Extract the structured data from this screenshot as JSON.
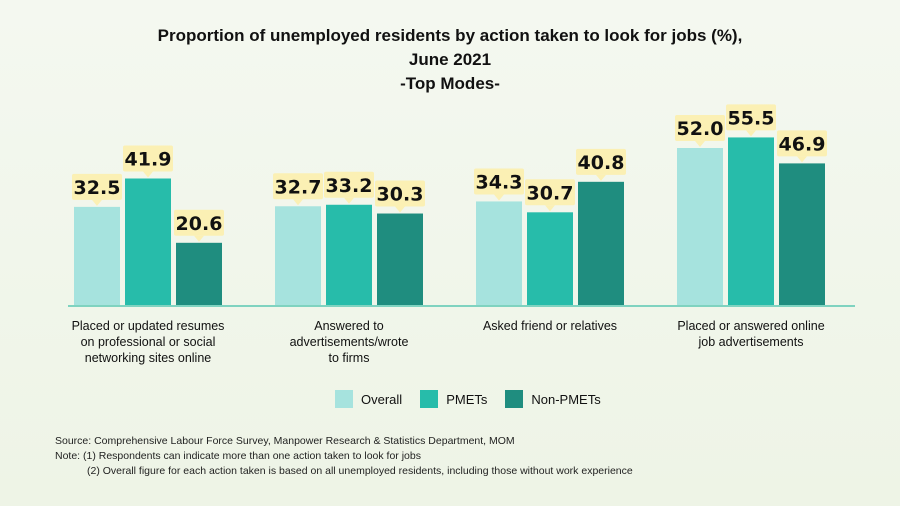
{
  "chart_data": {
    "type": "bar",
    "title": [
      "Proportion of unemployed residents by action taken to look for jobs (%),",
      "June 2021",
      "-Top Modes-"
    ],
    "categories": [
      "Placed or updated resumes on professional or social networking sites online",
      "Answered to advertisements/wrote to firms",
      "Asked friend or relatives",
      "Placed or answered online job advertisements"
    ],
    "category_lines": [
      [
        "Placed or updated resumes",
        "on professional or social",
        "networking sites online"
      ],
      [
        "Answered to",
        "advertisements/wrote",
        "to firms"
      ],
      [
        "Asked friend or relatives"
      ],
      [
        "Placed or answered online",
        "job advertisements"
      ]
    ],
    "series": [
      {
        "name": "Overall",
        "color": "#a6e3de",
        "values": [
          32.5,
          32.7,
          34.3,
          52.0
        ]
      },
      {
        "name": "PMETs",
        "color": "#27bcaa",
        "values": [
          41.9,
          33.2,
          30.7,
          55.5
        ]
      },
      {
        "name": "Non-PMETs",
        "color": "#1f8d7f",
        "values": [
          20.6,
          30.3,
          40.8,
          46.9
        ]
      }
    ],
    "ylim": [
      0,
      60
    ],
    "grid": false,
    "legend": "bottom-center",
    "label_box_color": "#fbf0b4",
    "axis_color": "#7fd3c0"
  },
  "notes": {
    "source": "Source: Comprehensive Labour Force Survey, Manpower Research & Statistics Department, MOM",
    "note1": "Note: (1) Respondents can indicate more than one action taken to look for jobs",
    "note2": "(2) Overall figure for each action taken is based on all unemployed residents, including those without work experience"
  }
}
